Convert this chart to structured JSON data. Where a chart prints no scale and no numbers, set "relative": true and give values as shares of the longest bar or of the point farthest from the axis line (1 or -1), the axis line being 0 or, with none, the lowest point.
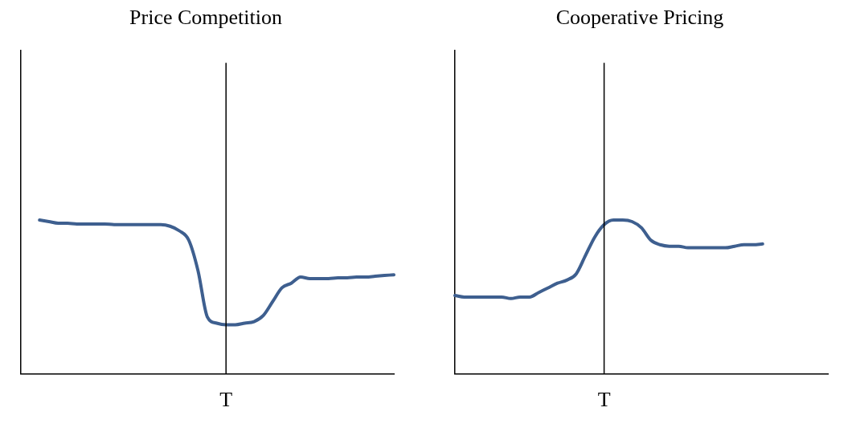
{
  "chart_data": [
    {
      "type": "line",
      "title": "Price Competition",
      "relative": true,
      "grid": false,
      "legend": false,
      "annotations": [
        "T"
      ],
      "categories": [
        null,
        null,
        null,
        null,
        null,
        null,
        null,
        null,
        null,
        null,
        null,
        null,
        null,
        null,
        null,
        null,
        null,
        null,
        null,
        null,
        null,
        null,
        null,
        null,
        null,
        null,
        null,
        null,
        null,
        null,
        null,
        null,
        null,
        null,
        null,
        null,
        null,
        null,
        null,
        null,
        null
      ],
      "series": [
        {
          "color": "#3e5f8f",
          "values": [
            null,
            null,
            1.0,
            0.99,
            0.98,
            0.98,
            0.975,
            0.975,
            0.975,
            0.975,
            0.97,
            0.97,
            0.97,
            0.97,
            0.97,
            0.97,
            0.96,
            0.93,
            0.87,
            0.67,
            0.37,
            0.33,
            0.32,
            0.32,
            0.33,
            0.34,
            0.38,
            0.47,
            0.56,
            0.59,
            0.63,
            0.62,
            0.62,
            0.62,
            0.625,
            0.625,
            0.63,
            0.63,
            0.635,
            0.64,
            0.645
          ]
        }
      ]
    },
    {
      "type": "line",
      "title": "Cooperative Pricing",
      "relative": true,
      "grid": false,
      "legend": false,
      "annotations": [
        "T"
      ],
      "categories": [
        null,
        null,
        null,
        null,
        null,
        null,
        null,
        null,
        null,
        null,
        null,
        null,
        null,
        null,
        null,
        null,
        null,
        null,
        null,
        null,
        null,
        null,
        null,
        null,
        null,
        null,
        null,
        null,
        null,
        null,
        null,
        null,
        null,
        null,
        null,
        null,
        null,
        null,
        null,
        null,
        null
      ],
      "series": [
        {
          "color": "#3e5f8f",
          "values": [
            0.51,
            0.5,
            0.5,
            0.5,
            0.5,
            0.5,
            0.49,
            0.5,
            0.5,
            0.53,
            0.56,
            0.59,
            0.61,
            0.65,
            0.77,
            0.89,
            0.97,
            1.0,
            1.0,
            0.99,
            0.95,
            0.87,
            0.84,
            0.83,
            0.83,
            0.82,
            0.82,
            0.82,
            0.82,
            0.82,
            0.83,
            0.84,
            0.84,
            0.845,
            null,
            null,
            null,
            null,
            null,
            null,
            null
          ]
        }
      ]
    }
  ]
}
